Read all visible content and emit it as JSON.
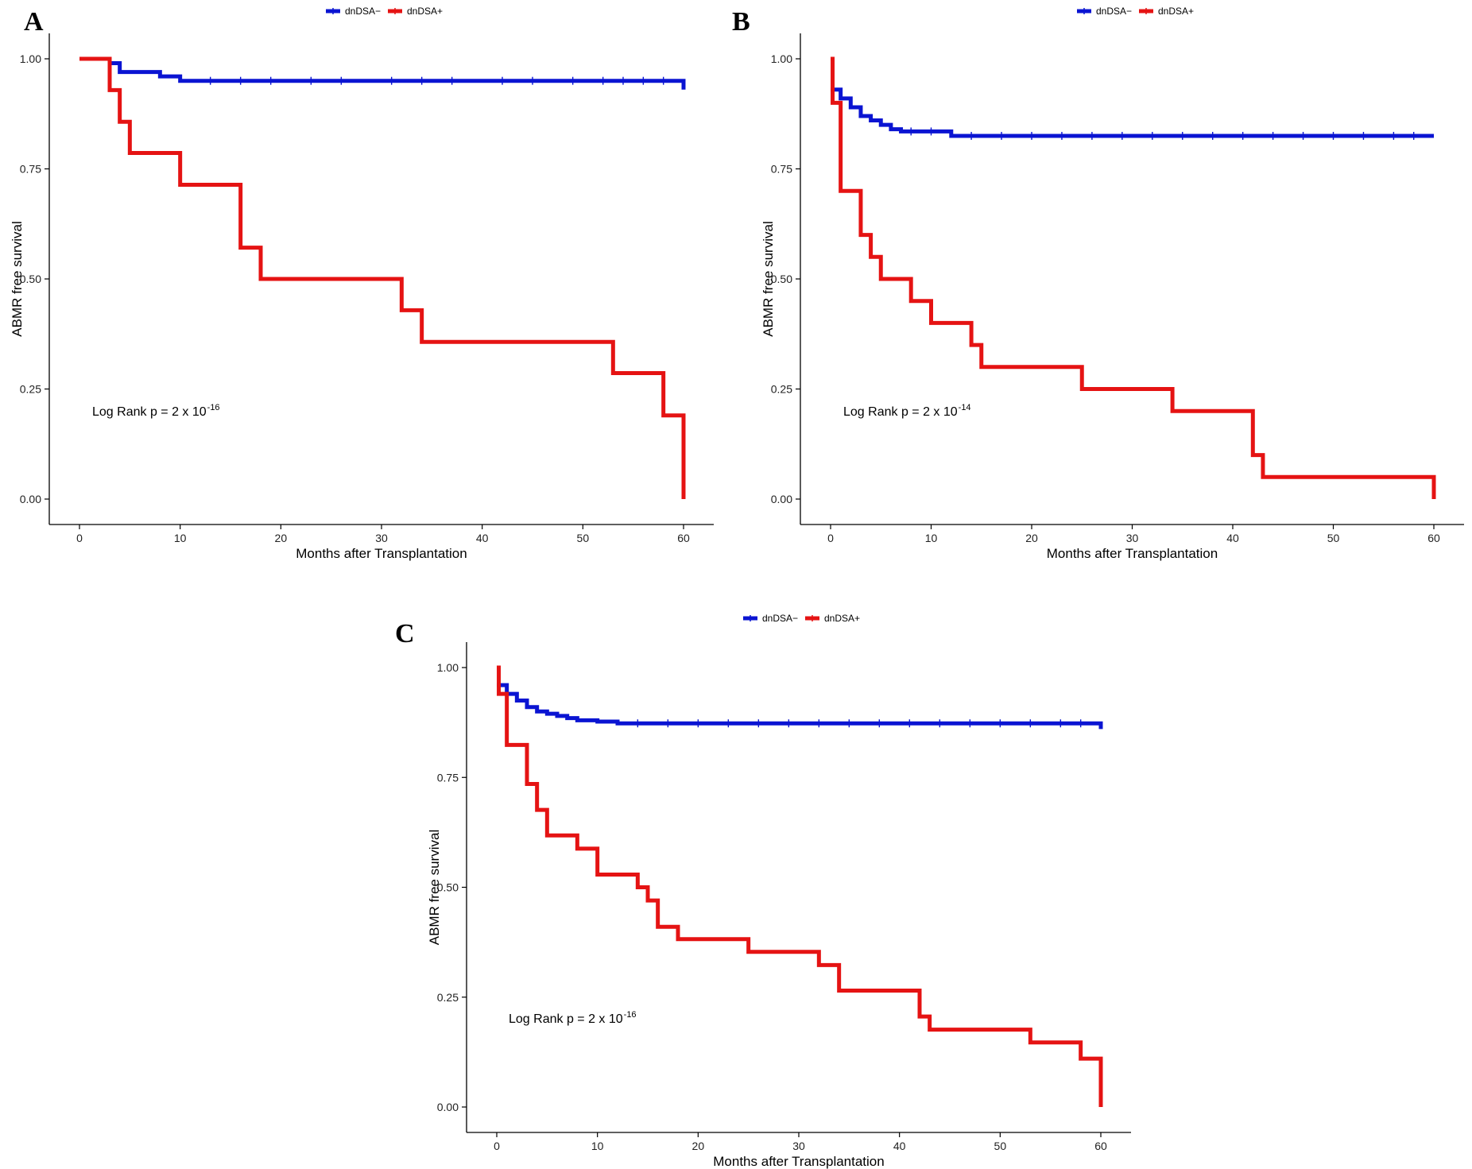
{
  "chart_data": [
    {
      "panel": "A",
      "type": "line",
      "subtype": "kaplan-meier",
      "xlabel": "Months after Transplantation",
      "ylabel": "ABMR free survival",
      "xlim": [
        0,
        60
      ],
      "ylim": [
        0,
        1
      ],
      "xticks": [
        "0",
        "10",
        "20",
        "30",
        "40",
        "50",
        "60"
      ],
      "yticks": [
        "0.00",
        "0.25",
        "0.50",
        "0.75",
        "1.00"
      ],
      "legend": [
        {
          "label": "dnDSA−",
          "color": "#0a14d2"
        },
        {
          "label": "dnDSA+",
          "color": "#e51313"
        }
      ],
      "annotation": {
        "text": "Log Rank p = 2 x 10",
        "superscript": "-16"
      },
      "series": [
        {
          "name": "dnDSA−",
          "color": "#0a14d2",
          "x": [
            0,
            3,
            4,
            8,
            10,
            60
          ],
          "y": [
            1.0,
            0.99,
            0.97,
            0.96,
            0.95,
            0.93
          ],
          "censor_x": [
            13,
            16,
            19,
            23,
            26,
            31,
            34,
            37,
            42,
            45,
            49,
            52,
            54,
            56,
            58
          ]
        },
        {
          "name": "dnDSA+",
          "color": "#e51313",
          "x": [
            0,
            3,
            4,
            5,
            10,
            16,
            18,
            32,
            34,
            53,
            58,
            60
          ],
          "y": [
            1.0,
            0.929,
            0.857,
            0.786,
            0.714,
            0.571,
            0.5,
            0.429,
            0.357,
            0.286,
            0.19,
            0.0
          ],
          "censor_x": []
        }
      ]
    },
    {
      "panel": "B",
      "type": "line",
      "subtype": "kaplan-meier",
      "xlabel": "Months after Transplantation",
      "ylabel": "ABMR free survival",
      "xlim": [
        0,
        60
      ],
      "ylim": [
        0,
        1
      ],
      "xticks": [
        "0",
        "10",
        "20",
        "30",
        "40",
        "50",
        "60"
      ],
      "yticks": [
        "0.00",
        "0.25",
        "0.50",
        "0.75",
        "1.00"
      ],
      "legend": [
        {
          "label": "dnDSA−",
          "color": "#0a14d2"
        },
        {
          "label": "dnDSA+",
          "color": "#e51313"
        }
      ],
      "annotation": {
        "text": "Log Rank p = 2 x 10",
        "superscript": "-14"
      },
      "series": [
        {
          "name": "dnDSA−",
          "color": "#0a14d2",
          "x": [
            0,
            1,
            2,
            3,
            4,
            5,
            6,
            7,
            12,
            60
          ],
          "y": [
            0.93,
            0.91,
            0.89,
            0.87,
            0.86,
            0.85,
            0.84,
            0.835,
            0.825,
            0.825
          ],
          "censor_x": [
            8,
            10,
            14,
            17,
            20,
            23,
            26,
            29,
            32,
            35,
            38,
            41,
            44,
            47,
            50,
            53,
            56,
            58
          ]
        },
        {
          "name": "dnDSA+",
          "color": "#e51313",
          "x": [
            0,
            0.2,
            1,
            3,
            4,
            5,
            8,
            10,
            14,
            15,
            25,
            34,
            42,
            43,
            60
          ],
          "y": [
            1.0,
            0.9,
            0.7,
            0.6,
            0.55,
            0.5,
            0.45,
            0.4,
            0.35,
            0.3,
            0.25,
            0.2,
            0.1,
            0.05,
            0.0
          ],
          "censor_x": []
        }
      ]
    },
    {
      "panel": "C",
      "type": "line",
      "subtype": "kaplan-meier",
      "xlabel": "Months after Transplantation",
      "ylabel": "ABMR free survival",
      "xlim": [
        0,
        60
      ],
      "ylim": [
        0,
        1
      ],
      "xticks": [
        "0",
        "10",
        "20",
        "30",
        "40",
        "50",
        "60"
      ],
      "yticks": [
        "0.00",
        "0.25",
        "0.50",
        "0.75",
        "1.00"
      ],
      "legend": [
        {
          "label": "dnDSA−",
          "color": "#0a14d2"
        },
        {
          "label": "dnDSA+",
          "color": "#e51313"
        }
      ],
      "annotation": {
        "text": "Log Rank p = 2 x 10",
        "superscript": "-16"
      },
      "series": [
        {
          "name": "dnDSA−",
          "color": "#0a14d2",
          "x": [
            0,
            1,
            2,
            3,
            4,
            5,
            6,
            7,
            8,
            10,
            12,
            60
          ],
          "y": [
            0.96,
            0.94,
            0.925,
            0.91,
            0.9,
            0.895,
            0.89,
            0.885,
            0.88,
            0.877,
            0.873,
            0.86
          ],
          "censor_x": [
            14,
            17,
            20,
            23,
            26,
            29,
            32,
            35,
            38,
            41,
            44,
            47,
            50,
            53,
            56,
            58
          ]
        },
        {
          "name": "dnDSA+",
          "color": "#e51313",
          "x": [
            0,
            0.2,
            1,
            3,
            4,
            5,
            8,
            10,
            14,
            15,
            16,
            18,
            25,
            32,
            34,
            42,
            43,
            53,
            58,
            60
          ],
          "y": [
            1.0,
            0.94,
            0.824,
            0.735,
            0.676,
            0.618,
            0.588,
            0.529,
            0.5,
            0.47,
            0.41,
            0.382,
            0.353,
            0.323,
            0.265,
            0.206,
            0.176,
            0.147,
            0.11,
            0.0
          ],
          "censor_x": []
        }
      ]
    }
  ]
}
